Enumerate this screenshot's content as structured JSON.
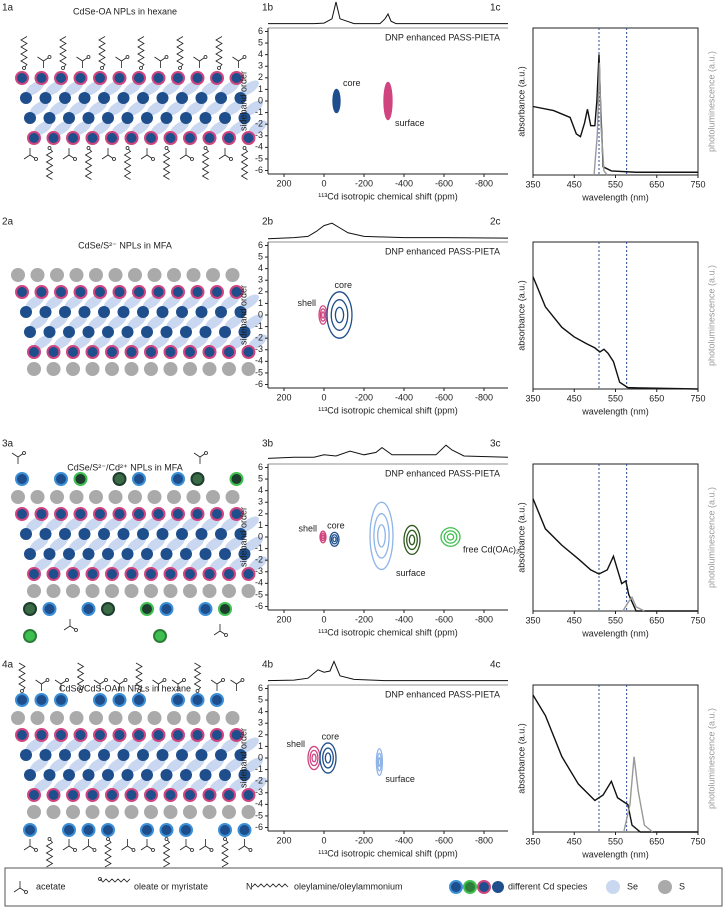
{
  "panels": [
    {
      "a": {
        "label": "1a",
        "title": "CdSe-OA NPLs in hexane"
      },
      "b": {
        "label": "1b",
        "type": "contour",
        "title": "DNP enhanced PASS-PIETA",
        "x_label": "¹¹³Cd isotropic chemical shift (ppm)",
        "y_label": "sideband order",
        "xlim": [
          280,
          -920
        ],
        "ylim": [
          6.3,
          -6.3
        ],
        "xticks": [
          200,
          0,
          -200,
          -400,
          -600,
          -800
        ],
        "yticks": [
          6,
          5,
          4,
          3,
          2,
          1,
          0,
          -1,
          -2,
          -3,
          -4,
          -5,
          -6
        ],
        "projection": {
          "x": [
            280,
            150,
            50,
            0,
            -40,
            -60,
            -80,
            -150,
            -280,
            -305,
            -320,
            -335,
            -360,
            -500,
            -700,
            -920
          ],
          "values": [
            0.1,
            0.1,
            0.1,
            0.12,
            0.3,
            1,
            0.3,
            0.1,
            0.1,
            0.3,
            0.5,
            0.2,
            0.1,
            0.1,
            0.1,
            0.1
          ]
        },
        "peaks": [
          {
            "name": "core",
            "color": "#1f4e8c",
            "x": [
              -45,
              -80
            ],
            "y": [
              1,
              -1
            ]
          },
          {
            "name": "surface",
            "color": "#d0457f",
            "x": [
              -300,
              -340
            ],
            "y": [
              1.6,
              -1.6
            ]
          }
        ]
      },
      "c": {
        "label": "1c",
        "type": "line",
        "x_label": "wavelength (nm)",
        "y_label": "absorbance (a.u.)",
        "y2_label": "photoluminescence (a.u.)",
        "xlim": [
          350,
          750
        ],
        "ylim": [
          0,
          1
        ],
        "xticks": [
          350,
          450,
          550,
          650,
          750
        ],
        "markers": [
          510,
          577
        ],
        "series": [
          {
            "color": "#111111",
            "x": [
              350,
              400,
              440,
              455,
              465,
              475,
              482,
              490,
              500,
              505,
              510,
              514,
              520,
              540,
              600,
              750
            ],
            "values": [
              0.5,
              0.47,
              0.42,
              0.3,
              0.28,
              0.38,
              0.48,
              0.36,
              0.36,
              0.55,
              0.88,
              0.5,
              0.06,
              0.03,
              0.02,
              0.02
            ]
          },
          {
            "color": "#999999",
            "x": [
              498,
              506,
              511,
              515,
              522,
              530
            ],
            "values": [
              0,
              0.3,
              0.82,
              0.35,
              0.03,
              0
            ]
          }
        ]
      }
    },
    {
      "a": {
        "label": "2a",
        "title": "CdSe/S²⁻ NPLs in MFA"
      },
      "b": {
        "label": "2b",
        "type": "contour",
        "title": "DNP enhanced PASS-PIETA",
        "x_label": "¹¹³Cd isotropic chemical shift (ppm)",
        "y_label": "sideband order",
        "xlim": [
          280,
          -920
        ],
        "ylim": [
          6.3,
          -6.3
        ],
        "xticks": [
          200,
          0,
          -200,
          -400,
          -600,
          -800
        ],
        "yticks": [
          6,
          5,
          4,
          3,
          2,
          1,
          0,
          -1,
          -2,
          -3,
          -4,
          -5,
          -6
        ],
        "projection": {
          "x": [
            280,
            150,
            80,
            40,
            0,
            -40,
            -80,
            -120,
            -200,
            -400,
            -600,
            -920
          ],
          "values": [
            0.05,
            0.1,
            0.15,
            0.35,
            0.6,
            0.7,
            0.5,
            0.3,
            0.15,
            0.1,
            0.1,
            0.08
          ]
        },
        "peaks": [
          {
            "name": "shell",
            "color": "#d0457f",
            "x": [
              25,
              -15
            ],
            "y": [
              0.8,
              -0.8
            ]
          },
          {
            "name": "core",
            "color": "#1f4e8c",
            "x": [
              -15,
              -140
            ],
            "y": [
              2,
              -2
            ]
          }
        ]
      },
      "c": {
        "label": "2c",
        "type": "line",
        "x_label": "wavelength (nm)",
        "y_label": "absorbance (a.u.)",
        "y2_label": "photoluminescence (a.u.)",
        "xlim": [
          350,
          750
        ],
        "ylim": [
          0,
          1
        ],
        "xticks": [
          350,
          450,
          550,
          650,
          750
        ],
        "markers": [
          510,
          577
        ],
        "series": [
          {
            "color": "#111111",
            "x": [
              350,
              380,
              420,
              450,
              480,
              500,
              512,
              522,
              532,
              545,
              560,
              580,
              750
            ],
            "values": [
              0.82,
              0.6,
              0.45,
              0.38,
              0.33,
              0.3,
              0.27,
              0.29,
              0.26,
              0.2,
              0.05,
              0.01,
              0
            ]
          }
        ]
      }
    },
    {
      "a": {
        "label": "3a",
        "title": "CdSe/S²⁻/Cd²⁺ NPLs in MFA"
      },
      "b": {
        "label": "3b",
        "type": "contour",
        "title": "DNP enhanced PASS-PIETA",
        "x_label": "¹¹³Cd isotropic chemical shift (ppm)",
        "y_label": "sideband order",
        "xlim": [
          280,
          -920
        ],
        "ylim": [
          6.3,
          -6.3
        ],
        "xticks": [
          200,
          0,
          -200,
          -400,
          -600,
          -800
        ],
        "yticks": [
          6,
          5,
          4,
          3,
          2,
          1,
          0,
          -1,
          -2,
          -3,
          -4,
          -5,
          -6
        ],
        "projection": {
          "x": [
            280,
            150,
            50,
            0,
            -60,
            -130,
            -200,
            -260,
            -290,
            -340,
            -450,
            -560,
            -610,
            -640,
            -700,
            -920
          ],
          "values": [
            0.15,
            0.2,
            0.2,
            0.3,
            0.25,
            0.45,
            0.3,
            0.4,
            0.6,
            0.3,
            0.3,
            0.3,
            0.7,
            0.5,
            0.25,
            0.2
          ]
        },
        "peaks": [
          {
            "name": "shell",
            "color": "#d0457f",
            "x": [
              20,
              -10
            ],
            "y": [
              0.5,
              -0.5
            ]
          },
          {
            "name": "core",
            "color": "#1f4e8c",
            "x": [
              -30,
              -75
            ],
            "y": [
              0.4,
              -0.8
            ]
          },
          {
            "name": "surface",
            "color": "#8fb4e8",
            "x": [
              -230,
              -345
            ],
            "y": [
              3,
              -2.8
            ]
          },
          {
            "color": "#2f5a1e",
            "x": [
              -400,
              -480
            ],
            "y": [
              1,
              -1.5
            ]
          },
          {
            "name": "free Cd(OAc)₂",
            "color": "#3fbf4f",
            "x": [
              -585,
              -680
            ],
            "y": [
              0.8,
              -0.8
            ]
          }
        ]
      },
      "c": {
        "label": "3c",
        "type": "line",
        "x_label": "wavelength (nm)",
        "y_label": "absorbance (a.u.)",
        "y2_label": "photoluminescence (a.u.)",
        "xlim": [
          350,
          750
        ],
        "ylim": [
          0,
          1
        ],
        "xticks": [
          350,
          450,
          550,
          650,
          750
        ],
        "markers": [
          510,
          577
        ],
        "series": [
          {
            "color": "#111111",
            "x": [
              350,
              380,
              420,
              460,
              490,
              510,
              530,
              545,
              555,
              565,
              575,
              582,
              600,
              750
            ],
            "values": [
              0.82,
              0.6,
              0.48,
              0.38,
              0.3,
              0.27,
              0.3,
              0.4,
              0.3,
              0.2,
              0.22,
              0.12,
              0,
              0
            ]
          },
          {
            "color": "#999999",
            "x": [
              568,
              580,
              590,
              600,
              620
            ],
            "values": [
              0,
              0.06,
              0.1,
              0.03,
              0
            ]
          }
        ]
      }
    },
    {
      "a": {
        "label": "4a",
        "title": "CdSe/CdS-OAm NPLs in hexane"
      },
      "b": {
        "label": "4b",
        "type": "contour",
        "title": "DNP enhanced PASS-PIETA",
        "x_label": "¹¹³Cd isotropic chemical shift (ppm)",
        "y_label": "sideband order",
        "xlim": [
          280,
          -920
        ],
        "ylim": [
          6.3,
          -6.3
        ],
        "xticks": [
          200,
          0,
          -200,
          -400,
          -600,
          -800
        ],
        "yticks": [
          6,
          5,
          4,
          3,
          2,
          1,
          0,
          -1,
          -2,
          -3,
          -4,
          -5,
          -6
        ],
        "projection": {
          "x": [
            280,
            150,
            80,
            30,
            0,
            -30,
            -50,
            -80,
            -150,
            -300,
            -600,
            -920
          ],
          "values": [
            0.1,
            0.12,
            0.2,
            0.55,
            0.45,
            0.5,
            0.9,
            0.3,
            0.15,
            0.1,
            0.1,
            0.1
          ]
        },
        "peaks": [
          {
            "name": "shell",
            "color": "#d0457f",
            "x": [
              80,
              20
            ],
            "y": [
              1,
              -1
            ]
          },
          {
            "name": "core",
            "color": "#1f4e8c",
            "x": [
              20,
              -60
            ],
            "y": [
              1.3,
              -1.3
            ]
          },
          {
            "name": "surface",
            "color": "#8fb4e8",
            "x": [
              -262,
              -292
            ],
            "y": [
              0.8,
              -1.5
            ]
          }
        ]
      },
      "c": {
        "label": "4c",
        "type": "line",
        "x_label": "wavelength (nm)",
        "y_label": "absorbance (a.u.)",
        "y2_label": "photoluminescence (a.u.)",
        "xlim": [
          350,
          750
        ],
        "ylim": [
          0,
          1
        ],
        "xticks": [
          350,
          450,
          550,
          650,
          750
        ],
        "markers": [
          510,
          577
        ],
        "series": [
          {
            "color": "#111111",
            "x": [
              350,
              380,
              420,
              460,
              500,
              520,
              540,
              555,
              570,
              580,
              590,
              610,
              750
            ],
            "values": [
              1,
              0.85,
              0.55,
              0.35,
              0.23,
              0.27,
              0.37,
              0.25,
              0.22,
              0.2,
              0.05,
              0,
              0
            ]
          },
          {
            "color": "#999999",
            "x": [
              570,
              585,
              595,
              605,
              620,
              640
            ],
            "values": [
              0,
              0.2,
              0.55,
              0.3,
              0.05,
              0
            ]
          }
        ]
      }
    }
  ],
  "legend": [
    "acetate",
    "oleate or myristate",
    "oleylamine/oleylammonium",
    "different Cd species",
    "Se",
    "S"
  ],
  "legend_n": "N"
}
